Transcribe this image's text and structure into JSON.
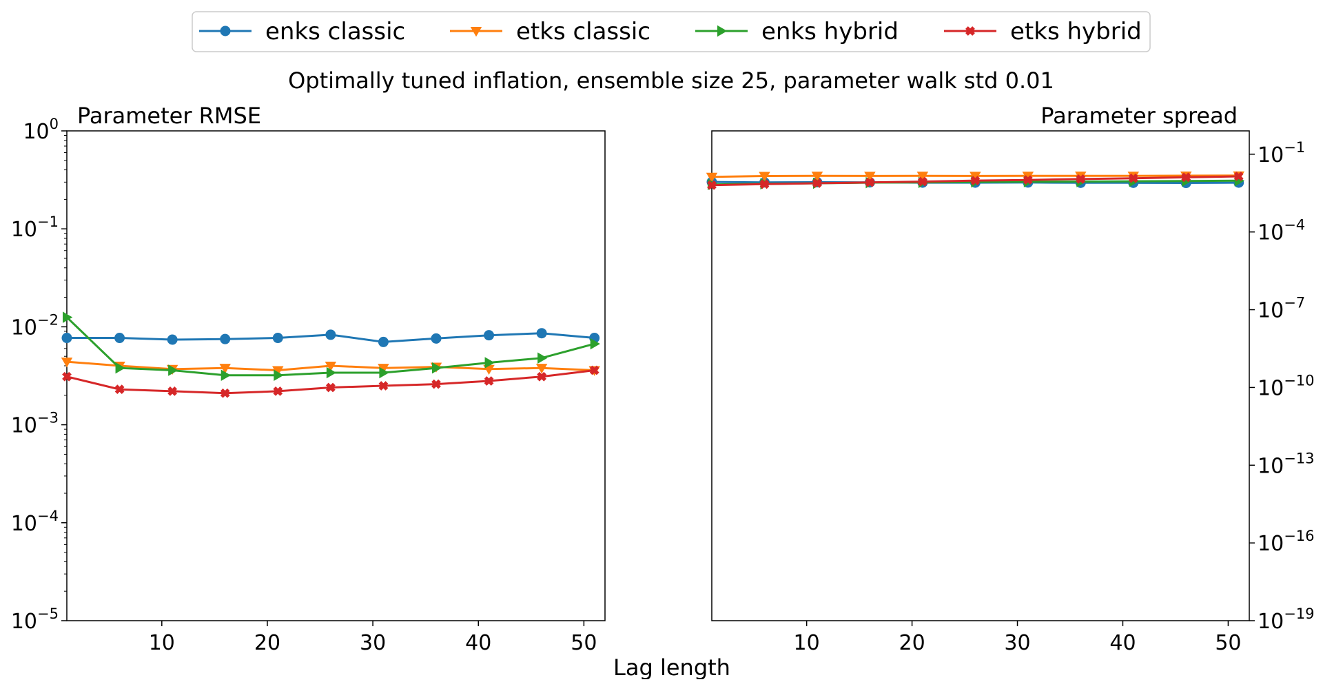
{
  "suptitle": "Optimally tuned inflation, ensemble size 25, parameter walk std 0.01",
  "xlabel": "Lag length",
  "legend": [
    {
      "label": "enks classic",
      "color": "#1f77b4",
      "marker": "circle"
    },
    {
      "label": "etks classic",
      "color": "#ff7f0e",
      "marker": "triangle-down"
    },
    {
      "label": "enks hybrid",
      "color": "#2ca02c",
      "marker": "triangle-right"
    },
    {
      "label": "etks hybrid",
      "color": "#d62728",
      "marker": "x-filled"
    }
  ],
  "chart_data": [
    {
      "type": "line",
      "title": "Parameter RMSE",
      "xlabel": "Lag length",
      "ylabel": "",
      "yscale": "log",
      "ylim_exp": [
        -5,
        0
      ],
      "xlim": [
        1,
        52
      ],
      "xticks": [
        10,
        20,
        30,
        40,
        50
      ],
      "yticks_exp": [
        -5,
        -4,
        -3,
        -2,
        -1,
        0
      ],
      "ytick_base": "10",
      "ytick_side": "left",
      "grid": false,
      "x": [
        1,
        6,
        11,
        16,
        21,
        26,
        31,
        36,
        41,
        46,
        51
      ],
      "series": [
        {
          "name": "enks classic",
          "values": [
            0.0077,
            0.0077,
            0.0074,
            0.0075,
            0.0077,
            0.0083,
            0.007,
            0.0076,
            0.0082,
            0.0086,
            0.0077
          ]
        },
        {
          "name": "etks classic",
          "values": [
            0.0044,
            0.004,
            0.0037,
            0.0038,
            0.0036,
            0.004,
            0.0038,
            0.0039,
            0.0037,
            0.0038,
            0.0036
          ]
        },
        {
          "name": "enks hybrid",
          "values": [
            0.0125,
            0.0038,
            0.0036,
            0.0032,
            0.0032,
            0.0034,
            0.0034,
            0.0038,
            0.0043,
            0.0048,
            0.0067
          ]
        },
        {
          "name": "etks hybrid",
          "values": [
            0.0031,
            0.0023,
            0.0022,
            0.0021,
            0.0022,
            0.0024,
            0.0025,
            0.0026,
            0.0028,
            0.0031,
            0.0036
          ]
        }
      ]
    },
    {
      "type": "line",
      "title": "Parameter spread",
      "xlabel": "Lag length",
      "ylabel": "",
      "yscale": "log",
      "ylim_exp": [
        -19,
        -0.1
      ],
      "xlim": [
        1,
        52
      ],
      "xticks": [
        10,
        20,
        30,
        40,
        50
      ],
      "yticks_exp": [
        -19,
        -16,
        -13,
        -10,
        -7,
        -4,
        -1
      ],
      "ytick_base": "10",
      "ytick_side": "right",
      "grid": false,
      "x": [
        1,
        6,
        11,
        16,
        21,
        26,
        31,
        36,
        41,
        46,
        51
      ],
      "series": [
        {
          "name": "enks classic",
          "values": [
            0.0085,
            0.0082,
            0.0083,
            0.0082,
            0.008,
            0.008,
            0.0081,
            0.0079,
            0.0079,
            0.0078,
            0.008
          ]
        },
        {
          "name": "etks classic",
          "values": [
            0.0134,
            0.0144,
            0.0146,
            0.0145,
            0.0146,
            0.0145,
            0.0146,
            0.0147,
            0.0146,
            0.0149,
            0.015
          ]
        },
        {
          "name": "enks hybrid",
          "values": [
            0.0068,
            0.0072,
            0.0076,
            0.008,
            0.0082,
            0.0085,
            0.0087,
            0.0088,
            0.009,
            0.0092,
            0.0095
          ]
        },
        {
          "name": "etks hybrid",
          "values": [
            0.0064,
            0.007,
            0.0076,
            0.0082,
            0.0088,
            0.0096,
            0.0102,
            0.011,
            0.0118,
            0.0128,
            0.014
          ]
        }
      ]
    }
  ]
}
